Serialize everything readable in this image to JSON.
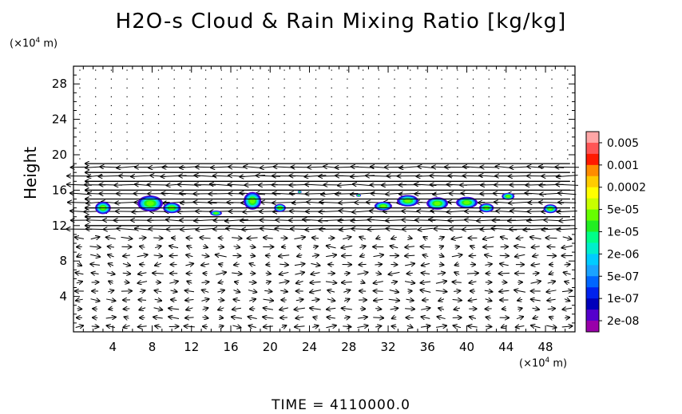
{
  "chart_data": {
    "type": "contour-vector",
    "title": "H2O-s Cloud & Rain Mixing Ratio [kg/kg]",
    "ylabel": "Height",
    "x_unit": {
      "prefix": "(×10",
      "exp": "4",
      "suffix": " m)"
    },
    "y_unit": {
      "prefix": "(×10",
      "exp": "4",
      "suffix": " m)"
    },
    "xlim": [
      0,
      51
    ],
    "ylim": [
      0,
      30
    ],
    "xticks": [
      4,
      8,
      12,
      16,
      20,
      24,
      28,
      32,
      36,
      40,
      44,
      48
    ],
    "yticks": [
      4,
      8,
      12,
      16,
      20,
      24,
      28
    ],
    "time_label": "TIME = 4110000.0",
    "colorbar": {
      "labels": [
        "0.005",
        "0.001",
        "0.0002",
        "5e-05",
        "1e-05",
        "2e-06",
        "5e-07",
        "1e-07",
        "2e-08"
      ],
      "colors": [
        "#ffa6a6",
        "#ff5555",
        "#ff1a00",
        "#ff8c00",
        "#ffcc00",
        "#ffff00",
        "#c8ff00",
        "#66ff00",
        "#22ee22",
        "#00ff88",
        "#00eecc",
        "#00ccff",
        "#1aa3ff",
        "#0066ff",
        "#0022ee",
        "#0000bb",
        "#5500cc",
        "#9900aa"
      ]
    },
    "cloud_blobs": [
      {
        "x": 3.0,
        "y": 14.0,
        "w": 1.6,
        "h": 1.4
      },
      {
        "x": 7.8,
        "y": 14.5,
        "w": 2.6,
        "h": 1.8
      },
      {
        "x": 10.0,
        "y": 14.0,
        "w": 1.8,
        "h": 1.2
      },
      {
        "x": 14.5,
        "y": 13.4,
        "w": 1.2,
        "h": 0.6
      },
      {
        "x": 18.2,
        "y": 14.8,
        "w": 1.8,
        "h": 2.0
      },
      {
        "x": 21.0,
        "y": 14.0,
        "w": 1.2,
        "h": 0.9
      },
      {
        "x": 23.0,
        "y": 15.8,
        "w": 0.4,
        "h": 0.3
      },
      {
        "x": 29.0,
        "y": 15.4,
        "w": 0.5,
        "h": 0.3
      },
      {
        "x": 31.5,
        "y": 14.2,
        "w": 1.8,
        "h": 1.0
      },
      {
        "x": 34.0,
        "y": 14.8,
        "w": 2.2,
        "h": 1.3
      },
      {
        "x": 37.0,
        "y": 14.5,
        "w": 2.2,
        "h": 1.4
      },
      {
        "x": 40.0,
        "y": 14.6,
        "w": 2.2,
        "h": 1.3
      },
      {
        "x": 42.0,
        "y": 14.0,
        "w": 1.5,
        "h": 1.0
      },
      {
        "x": 44.2,
        "y": 15.3,
        "w": 1.3,
        "h": 0.8
      },
      {
        "x": 48.5,
        "y": 13.9,
        "w": 1.4,
        "h": 1.0
      }
    ]
  }
}
